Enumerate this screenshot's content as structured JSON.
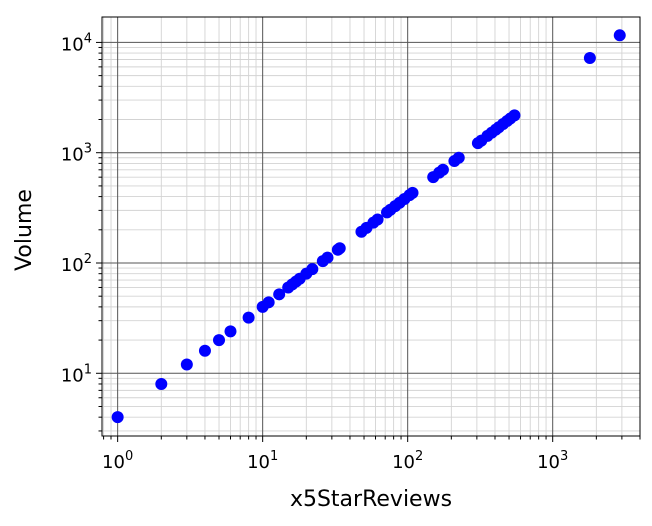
{
  "chart_data": {
    "type": "scatter",
    "title": "",
    "xlabel": "x5StarReviews",
    "ylabel": "Volume",
    "xscale": "log",
    "yscale": "log",
    "xlim": [
      0.78,
      4000
    ],
    "ylim": [
      2.7,
      17000
    ],
    "grid": "major and minor",
    "xticks": [
      {
        "value": 1,
        "base": "10",
        "exp": "0"
      },
      {
        "value": 10,
        "base": "10",
        "exp": "1"
      },
      {
        "value": 100,
        "base": "10",
        "exp": "2"
      },
      {
        "value": 1000,
        "base": "10",
        "exp": "3"
      }
    ],
    "yticks": [
      {
        "value": 10,
        "base": "10",
        "exp": "1"
      },
      {
        "value": 100,
        "base": "10",
        "exp": "2"
      },
      {
        "value": 1000,
        "base": "10",
        "exp": "3"
      },
      {
        "value": 10000,
        "base": "10",
        "exp": "4"
      }
    ],
    "marker_color": "#0000ff",
    "series": [
      {
        "points": [
          [
            1,
            4
          ],
          [
            2,
            8
          ],
          [
            3,
            12
          ],
          [
            4,
            16
          ],
          [
            5,
            20
          ],
          [
            6,
            24
          ],
          [
            8,
            32
          ],
          [
            10,
            40
          ],
          [
            11,
            44
          ],
          [
            13,
            52
          ],
          [
            15,
            60
          ],
          [
            16,
            64
          ],
          [
            17,
            68
          ],
          [
            18,
            72
          ],
          [
            20,
            80
          ],
          [
            22,
            88
          ],
          [
            26,
            104
          ],
          [
            28,
            112
          ],
          [
            33,
            132
          ],
          [
            34,
            136
          ],
          [
            48,
            192
          ],
          [
            52,
            208
          ],
          [
            58,
            232
          ],
          [
            62,
            248
          ],
          [
            72,
            288
          ],
          [
            76,
            304
          ],
          [
            82,
            328
          ],
          [
            88,
            352
          ],
          [
            95,
            380
          ],
          [
            103,
            412
          ],
          [
            108,
            432
          ],
          [
            150,
            600
          ],
          [
            165,
            660
          ],
          [
            175,
            700
          ],
          [
            210,
            840
          ],
          [
            225,
            900
          ],
          [
            305,
            1220
          ],
          [
            322,
            1288
          ],
          [
            355,
            1420
          ],
          [
            380,
            1520
          ],
          [
            405,
            1620
          ],
          [
            425,
            1700
          ],
          [
            455,
            1820
          ],
          [
            485,
            1940
          ],
          [
            510,
            2040
          ],
          [
            545,
            2180
          ],
          [
            1805,
            7220
          ],
          [
            2900,
            11600
          ]
        ]
      }
    ]
  }
}
